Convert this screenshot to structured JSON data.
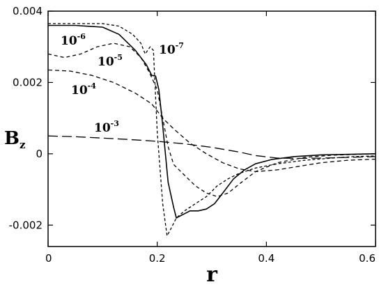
{
  "chart_data": {
    "type": "line",
    "xlabel": "r",
    "ylabel": "B",
    "ylabel_sub": "z",
    "xlim": [
      0,
      0.6
    ],
    "ylim": [
      -0.0026,
      0.004
    ],
    "x_ticks": [
      0,
      0.2,
      0.4,
      0.6
    ],
    "y_ticks": [
      -0.002,
      0,
      0.002,
      0.004
    ],
    "x_tick_labels": [
      "0",
      "0.2",
      "0.4",
      "0.6"
    ],
    "y_tick_labels": [
      "-0.002",
      "0",
      "0.002",
      "0.004"
    ],
    "grid": false,
    "legend": "none",
    "series": [
      {
        "name": "10-7",
        "label_base": "10",
        "label_exp": "-7",
        "dash": "4,3",
        "width": 1.3,
        "points": [
          [
            0,
            0.00365
          ],
          [
            0.05,
            0.00365
          ],
          [
            0.1,
            0.00365
          ],
          [
            0.13,
            0.00358
          ],
          [
            0.155,
            0.00335
          ],
          [
            0.17,
            0.0031
          ],
          [
            0.178,
            0.0028
          ],
          [
            0.187,
            0.003
          ],
          [
            0.193,
            0.0029
          ],
          [
            0.2,
            0.0006
          ],
          [
            0.21,
            -0.0014
          ],
          [
            0.218,
            -0.0023
          ],
          [
            0.225,
            -0.0021
          ],
          [
            0.235,
            -0.0018
          ],
          [
            0.25,
            -0.0016
          ],
          [
            0.27,
            -0.0014
          ],
          [
            0.29,
            -0.0012
          ],
          [
            0.31,
            -0.0009
          ],
          [
            0.33,
            -0.0007
          ],
          [
            0.35,
            -0.00055
          ],
          [
            0.38,
            -0.0004
          ],
          [
            0.42,
            -0.00028
          ],
          [
            0.47,
            -0.00018
          ],
          [
            0.52,
            -0.00012
          ],
          [
            0.56,
            -8e-05
          ],
          [
            0.6,
            -6e-05
          ]
        ]
      },
      {
        "name": "10-6",
        "label_base": "10",
        "label_exp": "-6",
        "dash": "none",
        "width": 1.6,
        "points": [
          [
            0,
            0.0036
          ],
          [
            0.05,
            0.0036
          ],
          [
            0.1,
            0.00355
          ],
          [
            0.13,
            0.00335
          ],
          [
            0.16,
            0.0029
          ],
          [
            0.18,
            0.0025
          ],
          [
            0.19,
            0.0022
          ],
          [
            0.197,
            0.00218
          ],
          [
            0.203,
            0.0018
          ],
          [
            0.21,
            0.0008
          ],
          [
            0.22,
            -0.0008
          ],
          [
            0.23,
            -0.0015
          ],
          [
            0.235,
            -0.0018
          ],
          [
            0.245,
            -0.00172
          ],
          [
            0.26,
            -0.0016
          ],
          [
            0.275,
            -0.0016
          ],
          [
            0.29,
            -0.00155
          ],
          [
            0.305,
            -0.0014
          ],
          [
            0.32,
            -0.0011
          ],
          [
            0.34,
            -0.0007
          ],
          [
            0.36,
            -0.00045
          ],
          [
            0.38,
            -0.00028
          ],
          [
            0.41,
            -0.00016
          ],
          [
            0.45,
            -8e-05
          ],
          [
            0.5,
            -3e-05
          ],
          [
            0.6,
            0
          ]
        ]
      },
      {
        "name": "10-5",
        "label_base": "10",
        "label_exp": "-5",
        "dash": "5,4",
        "width": 1.3,
        "points": [
          [
            0,
            0.0028
          ],
          [
            0.03,
            0.0027
          ],
          [
            0.06,
            0.0028
          ],
          [
            0.09,
            0.003
          ],
          [
            0.12,
            0.0031
          ],
          [
            0.15,
            0.003
          ],
          [
            0.17,
            0.0027
          ],
          [
            0.185,
            0.0023
          ],
          [
            0.2,
            0.0018
          ],
          [
            0.21,
            0.001
          ],
          [
            0.22,
            0.0002
          ],
          [
            0.23,
            -0.0003
          ],
          [
            0.25,
            -0.0006
          ],
          [
            0.27,
            -0.0009
          ],
          [
            0.29,
            -0.0011
          ],
          [
            0.31,
            -0.0012
          ],
          [
            0.33,
            -0.0011
          ],
          [
            0.35,
            -0.00085
          ],
          [
            0.38,
            -0.0005
          ],
          [
            0.42,
            -0.00025
          ],
          [
            0.47,
            -0.0001
          ],
          [
            0.52,
            -4e-05
          ],
          [
            0.6,
            0
          ]
        ]
      },
      {
        "name": "10-4",
        "label_base": "10",
        "label_exp": "-4",
        "dash": "6,4",
        "width": 1.3,
        "points": [
          [
            0,
            0.00235
          ],
          [
            0.04,
            0.00232
          ],
          [
            0.08,
            0.0022
          ],
          [
            0.12,
            0.002
          ],
          [
            0.16,
            0.0017
          ],
          [
            0.19,
            0.0014
          ],
          [
            0.21,
            0.001
          ],
          [
            0.23,
            0.0007
          ],
          [
            0.26,
            0.0003
          ],
          [
            0.29,
            0
          ],
          [
            0.32,
            -0.00025
          ],
          [
            0.35,
            -0.00042
          ],
          [
            0.38,
            -0.0005
          ],
          [
            0.42,
            -0.00045
          ],
          [
            0.46,
            -0.00035
          ],
          [
            0.5,
            -0.00025
          ],
          [
            0.55,
            -0.00018
          ],
          [
            0.6,
            -0.00015
          ]
        ]
      },
      {
        "name": "10-3",
        "label_base": "10",
        "label_exp": "-3",
        "dash": "14,6",
        "width": 1.3,
        "points": [
          [
            0,
            0.0005
          ],
          [
            0.05,
            0.00048
          ],
          [
            0.1,
            0.00044
          ],
          [
            0.15,
            0.0004
          ],
          [
            0.2,
            0.00035
          ],
          [
            0.25,
            0.00028
          ],
          [
            0.3,
            0.00018
          ],
          [
            0.35,
            5e-05
          ],
          [
            0.38,
            -5e-05
          ],
          [
            0.42,
            -0.00012
          ],
          [
            0.46,
            -0.00013
          ],
          [
            0.5,
            -0.00012
          ],
          [
            0.55,
            -0.0001
          ],
          [
            0.6,
            -8e-05
          ]
        ]
      }
    ]
  }
}
